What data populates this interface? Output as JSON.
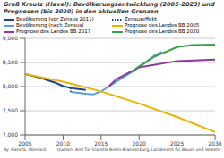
{
  "chart_data": {
    "type": "line",
    "title": "Groß Kreutz (Havel): Bevölkerungsentwicklung (2005-2023) und Prognosen (bis 2030) in den aktuellen Grenzen",
    "annotations": [
      "By: Hans G. Oberlack",
      "Quellen: Amt für Statistik Berlin-Brandenburg, Landesamt für Bauen und Verkehr"
    ],
    "xlim": [
      2005,
      2030
    ],
    "xticks": [
      2005,
      2010,
      2015,
      2020,
      2025,
      2030
    ],
    "ylim": [
      7000,
      9000
    ],
    "yticks": [
      {
        "value": 7000,
        "label": "7,000"
      },
      {
        "value": 7500,
        "label": "7,500"
      },
      {
        "value": 8000,
        "label": "8,000"
      },
      {
        "value": 8500,
        "label": "8,500"
      },
      {
        "value": 9000,
        "label": "9,000"
      }
    ],
    "grid": true,
    "legend": "top",
    "series": [
      {
        "name": "Bevölkerung (vor Zensus 2011)",
        "color": "#1f3f8f",
        "line_style": "solid",
        "x": [
          2005,
          2006,
          2007,
          2008,
          2009,
          2010,
          2011,
          2012,
          2013
        ],
        "values": [
          8260,
          8220,
          8180,
          8130,
          8080,
          8010,
          7970,
          7950,
          7930
        ]
      },
      {
        "name": "Zensuseffekt",
        "color": "#1f3f8f",
        "line_style": "dotted",
        "x": [
          2011,
          2011
        ],
        "values": [
          7970,
          7890
        ]
      },
      {
        "name": "Bevölkerung (nach Zensus)",
        "color": "#5aa0d8",
        "line_style": "solid",
        "x": [
          2011,
          2012,
          2013,
          2014,
          2015,
          2016,
          2017,
          2018,
          2019,
          2020,
          2021,
          2022,
          2023
        ],
        "values": [
          7890,
          7870,
          7850,
          7840,
          7900,
          8000,
          8100,
          8200,
          8300,
          8400,
          8520,
          8640,
          8720
        ]
      },
      {
        "name": "Prognose des Landes BB 2005",
        "color": "#e8b400",
        "line_style": "solid",
        "x": [
          2005,
          2010,
          2015,
          2020,
          2025,
          2030
        ],
        "values": [
          8260,
          8100,
          7900,
          7650,
          7370,
          7060
        ]
      },
      {
        "name": "Prognose des Landes BB 2017",
        "color": "#8b3a9a",
        "line_style": "solid",
        "x": [
          2016,
          2017,
          2020,
          2025,
          2030
        ],
        "values": [
          8000,
          8150,
          8400,
          8530,
          8560
        ]
      },
      {
        "name": "Prognose des Landes BB 2020",
        "color": "#3aa04a",
        "line_style": "solid",
        "x": [
          2019,
          2020,
          2022,
          2025,
          2027,
          2030
        ],
        "values": [
          8300,
          8420,
          8620,
          8820,
          8860,
          8870
        ]
      }
    ]
  }
}
